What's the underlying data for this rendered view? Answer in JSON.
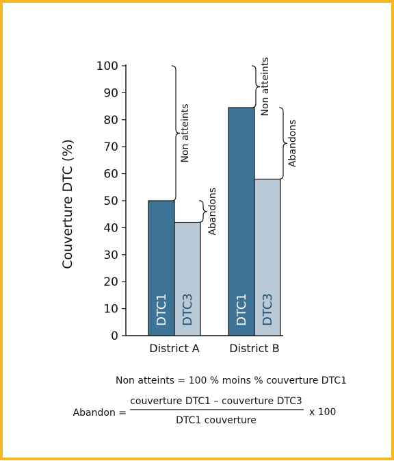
{
  "chart_data": {
    "type": "bar",
    "ylabel": "Couverture DTC (%)",
    "ylim": [
      0,
      100
    ],
    "yticks": [
      "0",
      "10",
      "20",
      "30",
      "40",
      "50",
      "60",
      "70",
      "80",
      "90",
      "100"
    ],
    "categories": [
      "District A",
      "District B"
    ],
    "series": [
      {
        "name": "DTC1",
        "values": [
          50,
          84.5
        ],
        "color": "#3d7396"
      },
      {
        "name": "DTC3",
        "values": [
          42,
          58
        ],
        "color": "#b8c9d8"
      }
    ],
    "annotations": [
      {
        "label": "Non atteints",
        "category": "District A",
        "from": 50,
        "to": 100
      },
      {
        "label": "Abandons",
        "category": "District A",
        "from": 42,
        "to": 50
      },
      {
        "label": "Non atteints",
        "category": "District B",
        "from": 84.5,
        "to": 100
      },
      {
        "label": "Abandons",
        "category": "District B",
        "from": 58,
        "to": 84.5
      }
    ],
    "grid": false,
    "legend": "none"
  },
  "notes": {
    "non_atteints_definition": "Non atteints = 100 % moins % couverture DTC1",
    "abandon_prefix": "Abandon =",
    "abandon_numerator": "couverture DTC1 – couverture DTC3",
    "abandon_denominator": "DTC1 couverture",
    "abandon_suffix": "x 100"
  },
  "colors": {
    "frame": "#f5b81c",
    "dtc1": "#3d7396",
    "dtc3": "#b8c9d8"
  }
}
